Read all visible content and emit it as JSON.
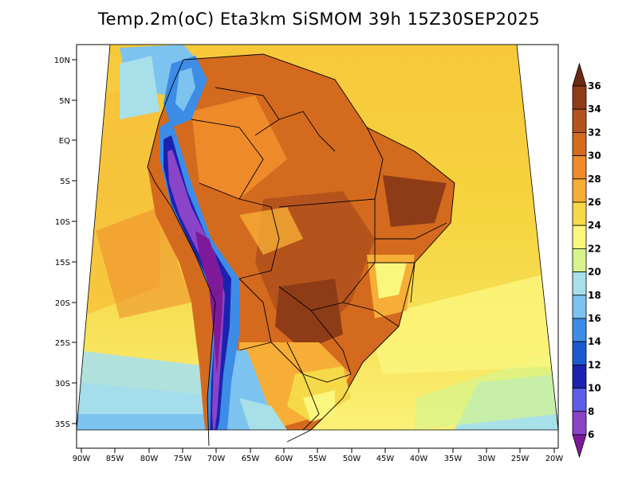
{
  "title": "Temp.2m(oC) Eta3km SiSMOM 39h 15Z30SEP2025",
  "lat_labels": [
    "10N",
    "5N",
    "EQ",
    "5S",
    "10S",
    "15S",
    "20S",
    "25S",
    "30S",
    "35S"
  ],
  "lon_labels": [
    "90W",
    "85W",
    "80W",
    "75W",
    "70W",
    "65W",
    "60W",
    "55W",
    "50W",
    "45W",
    "40W",
    "35W",
    "30W",
    "25W",
    "20W"
  ],
  "colorbar": {
    "labels": [
      "36",
      "34",
      "32",
      "30",
      "28",
      "26",
      "24",
      "22",
      "20",
      "18",
      "16",
      "14",
      "12",
      "10",
      "8",
      "6"
    ],
    "colors": [
      "#6b2a12",
      "#8e3c17",
      "#b5531c",
      "#d46a1e",
      "#ef8a2a",
      "#f7ae36",
      "#f6d948",
      "#fbf67e",
      "#d6f58a",
      "#a8e0ea",
      "#7cc3f0",
      "#3d8ce6",
      "#1b5ad0",
      "#1b22b0",
      "#5c5de8",
      "#8a44c8",
      "#7e1a9a"
    ]
  },
  "legend_units": "oC"
}
